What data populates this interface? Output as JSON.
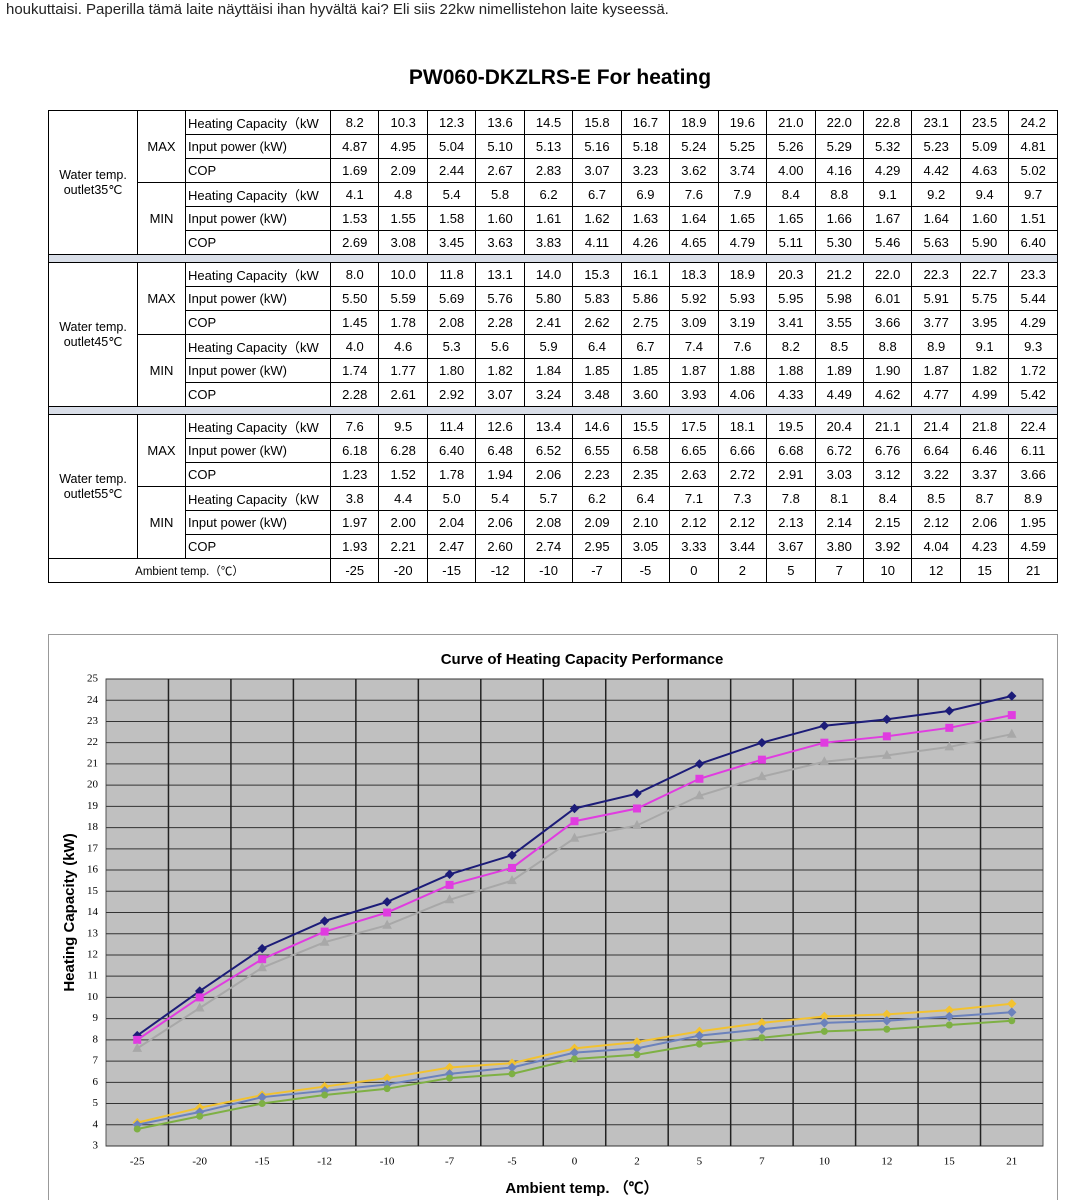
{
  "post": {
    "text": "houkuttaisi. Paperilla tämä laite näyttäisi ihan hyvältä kai? Eli siis 22kw nimellistehon laite kyseessä."
  },
  "table": {
    "title": "PW060-DKZLRS-E For heating",
    "groups": [
      {
        "label": "Water temp. outlet35℃",
        "modes": [
          {
            "mode": "MAX",
            "rows": [
              {
                "label": "Heating Capacity（kW",
                "values": [
                  "8.2",
                  "10.3",
                  "12.3",
                  "13.6",
                  "14.5",
                  "15.8",
                  "16.7",
                  "18.9",
                  "19.6",
                  "21.0",
                  "22.0",
                  "22.8",
                  "23.1",
                  "23.5",
                  "24.2"
                ]
              },
              {
                "label": "Input power (kW)",
                "values": [
                  "4.87",
                  "4.95",
                  "5.04",
                  "5.10",
                  "5.13",
                  "5.16",
                  "5.18",
                  "5.24",
                  "5.25",
                  "5.26",
                  "5.29",
                  "5.32",
                  "5.23",
                  "5.09",
                  "4.81"
                ]
              },
              {
                "label": "COP",
                "values": [
                  "1.69",
                  "2.09",
                  "2.44",
                  "2.67",
                  "2.83",
                  "3.07",
                  "3.23",
                  "3.62",
                  "3.74",
                  "4.00",
                  "4.16",
                  "4.29",
                  "4.42",
                  "4.63",
                  "5.02"
                ]
              }
            ]
          },
          {
            "mode": "MIN",
            "rows": [
              {
                "label": "Heating Capacity（kW",
                "values": [
                  "4.1",
                  "4.8",
                  "5.4",
                  "5.8",
                  "6.2",
                  "6.7",
                  "6.9",
                  "7.6",
                  "7.9",
                  "8.4",
                  "8.8",
                  "9.1",
                  "9.2",
                  "9.4",
                  "9.7"
                ]
              },
              {
                "label": "Input power (kW)",
                "values": [
                  "1.53",
                  "1.55",
                  "1.58",
                  "1.60",
                  "1.61",
                  "1.62",
                  "1.63",
                  "1.64",
                  "1.65",
                  "1.65",
                  "1.66",
                  "1.67",
                  "1.64",
                  "1.60",
                  "1.51"
                ]
              },
              {
                "label": "COP",
                "values": [
                  "2.69",
                  "3.08",
                  "3.45",
                  "3.63",
                  "3.83",
                  "4.11",
                  "4.26",
                  "4.65",
                  "4.79",
                  "5.11",
                  "5.30",
                  "5.46",
                  "5.63",
                  "5.90",
                  "6.40"
                ]
              }
            ]
          }
        ]
      },
      {
        "label": "Water temp. outlet45℃",
        "modes": [
          {
            "mode": "MAX",
            "rows": [
              {
                "label": "Heating Capacity（kW",
                "values": [
                  "8.0",
                  "10.0",
                  "11.8",
                  "13.1",
                  "14.0",
                  "15.3",
                  "16.1",
                  "18.3",
                  "18.9",
                  "20.3",
                  "21.2",
                  "22.0",
                  "22.3",
                  "22.7",
                  "23.3"
                ]
              },
              {
                "label": "Input power (kW)",
                "values": [
                  "5.50",
                  "5.59",
                  "5.69",
                  "5.76",
                  "5.80",
                  "5.83",
                  "5.86",
                  "5.92",
                  "5.93",
                  "5.95",
                  "5.98",
                  "6.01",
                  "5.91",
                  "5.75",
                  "5.44"
                ]
              },
              {
                "label": "COP",
                "values": [
                  "1.45",
                  "1.78",
                  "2.08",
                  "2.28",
                  "2.41",
                  "2.62",
                  "2.75",
                  "3.09",
                  "3.19",
                  "3.41",
                  "3.55",
                  "3.66",
                  "3.77",
                  "3.95",
                  "4.29"
                ]
              }
            ]
          },
          {
            "mode": "MIN",
            "rows": [
              {
                "label": "Heating Capacity（kW",
                "values": [
                  "4.0",
                  "4.6",
                  "5.3",
                  "5.6",
                  "5.9",
                  "6.4",
                  "6.7",
                  "7.4",
                  "7.6",
                  "8.2",
                  "8.5",
                  "8.8",
                  "8.9",
                  "9.1",
                  "9.3"
                ]
              },
              {
                "label": "Input power (kW)",
                "values": [
                  "1.74",
                  "1.77",
                  "1.80",
                  "1.82",
                  "1.84",
                  "1.85",
                  "1.85",
                  "1.87",
                  "1.88",
                  "1.88",
                  "1.89",
                  "1.90",
                  "1.87",
                  "1.82",
                  "1.72"
                ]
              },
              {
                "label": "COP",
                "values": [
                  "2.28",
                  "2.61",
                  "2.92",
                  "3.07",
                  "3.24",
                  "3.48",
                  "3.60",
                  "3.93",
                  "4.06",
                  "4.33",
                  "4.49",
                  "4.62",
                  "4.77",
                  "4.99",
                  "5.42"
                ]
              }
            ]
          }
        ]
      },
      {
        "label": "Water temp. outlet55℃",
        "modes": [
          {
            "mode": "MAX",
            "rows": [
              {
                "label": "Heating Capacity（kW",
                "values": [
                  "7.6",
                  "9.5",
                  "11.4",
                  "12.6",
                  "13.4",
                  "14.6",
                  "15.5",
                  "17.5",
                  "18.1",
                  "19.5",
                  "20.4",
                  "21.1",
                  "21.4",
                  "21.8",
                  "22.4"
                ]
              },
              {
                "label": "Input power (kW)",
                "values": [
                  "6.18",
                  "6.28",
                  "6.40",
                  "6.48",
                  "6.52",
                  "6.55",
                  "6.58",
                  "6.65",
                  "6.66",
                  "6.68",
                  "6.72",
                  "6.76",
                  "6.64",
                  "6.46",
                  "6.11"
                ]
              },
              {
                "label": "COP",
                "values": [
                  "1.23",
                  "1.52",
                  "1.78",
                  "1.94",
                  "2.06",
                  "2.23",
                  "2.35",
                  "2.63",
                  "2.72",
                  "2.91",
                  "3.03",
                  "3.12",
                  "3.22",
                  "3.37",
                  "3.66"
                ]
              }
            ]
          },
          {
            "mode": "MIN",
            "rows": [
              {
                "label": "Heating Capacity（kW",
                "values": [
                  "3.8",
                  "4.4",
                  "5.0",
                  "5.4",
                  "5.7",
                  "6.2",
                  "6.4",
                  "7.1",
                  "7.3",
                  "7.8",
                  "8.1",
                  "8.4",
                  "8.5",
                  "8.7",
                  "8.9"
                ]
              },
              {
                "label": "Input power (kW)",
                "values": [
                  "1.97",
                  "2.00",
                  "2.04",
                  "2.06",
                  "2.08",
                  "2.09",
                  "2.10",
                  "2.12",
                  "2.12",
                  "2.13",
                  "2.14",
                  "2.15",
                  "2.12",
                  "2.06",
                  "1.95"
                ]
              },
              {
                "label": "COP",
                "values": [
                  "1.93",
                  "2.21",
                  "2.47",
                  "2.60",
                  "2.74",
                  "2.95",
                  "3.05",
                  "3.33",
                  "3.44",
                  "3.67",
                  "3.80",
                  "3.92",
                  "4.04",
                  "4.23",
                  "4.59"
                ]
              }
            ]
          }
        ]
      }
    ],
    "footer": {
      "label": "Ambient temp.（℃）",
      "values": [
        "-25",
        "-20",
        "-15",
        "-12",
        "-10",
        "-7",
        "-5",
        "0",
        "2",
        "5",
        "7",
        "10",
        "12",
        "15",
        "21"
      ]
    }
  },
  "chart_data": {
    "type": "line",
    "title": "Curve of Heating Capacity Performance",
    "x_label": "Ambient temp. （℃）",
    "y_label": "Heating Capacity (kW)",
    "categories": [
      "-25",
      "-20",
      "-15",
      "-12",
      "-10",
      "-7",
      "-5",
      "0",
      "2",
      "5",
      "7",
      "10",
      "12",
      "15",
      "21"
    ],
    "ylim": [
      3,
      25
    ],
    "yticks": [
      3,
      4,
      5,
      6,
      7,
      8,
      9,
      10,
      11,
      12,
      13,
      14,
      15,
      16,
      17,
      18,
      19,
      20,
      21,
      22,
      23,
      24,
      25
    ],
    "grid": true,
    "series": [
      {
        "color": "#1c1c78",
        "marker": "diamond",
        "values": [
          8.2,
          10.3,
          12.3,
          13.6,
          14.5,
          15.8,
          16.7,
          18.9,
          19.6,
          21.0,
          22.0,
          22.8,
          23.1,
          23.5,
          24.2
        ]
      },
      {
        "color": "#e03ce0",
        "marker": "square",
        "values": [
          8.0,
          10.0,
          11.8,
          13.1,
          14.0,
          15.3,
          16.1,
          18.3,
          18.9,
          20.3,
          21.2,
          22.0,
          22.3,
          22.7,
          23.3
        ]
      },
      {
        "color": "#a8a8a8",
        "marker": "triangle",
        "values": [
          7.6,
          9.5,
          11.4,
          12.6,
          13.4,
          14.6,
          15.5,
          17.5,
          18.1,
          19.5,
          20.4,
          21.1,
          21.4,
          21.8,
          22.4
        ]
      },
      {
        "color": "#f2c230",
        "marker": "diamond",
        "values": [
          4.1,
          4.8,
          5.4,
          5.8,
          6.2,
          6.7,
          6.9,
          7.6,
          7.9,
          8.4,
          8.8,
          9.1,
          9.2,
          9.4,
          9.7
        ]
      },
      {
        "color": "#6c82bc",
        "marker": "diamond",
        "values": [
          4.0,
          4.6,
          5.3,
          5.6,
          5.9,
          6.4,
          6.7,
          7.4,
          7.6,
          8.2,
          8.5,
          8.8,
          8.9,
          9.1,
          9.3
        ]
      },
      {
        "color": "#7eb044",
        "marker": "circle",
        "values": [
          3.8,
          4.4,
          5.0,
          5.4,
          5.7,
          6.2,
          6.4,
          7.1,
          7.3,
          7.8,
          8.1,
          8.4,
          8.5,
          8.7,
          8.9
        ]
      }
    ]
  }
}
